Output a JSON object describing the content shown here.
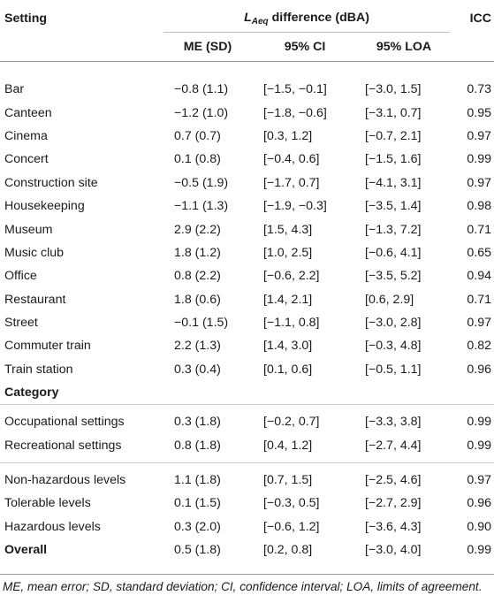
{
  "header": {
    "setting": "Setting",
    "laeq_symbol": "L",
    "laeq_sub": "Aeq",
    "laeq_rest": " difference (dBA)",
    "icc": "ICC",
    "me": "ME (SD)",
    "ci": "95% CI",
    "loa": "95% LOA"
  },
  "settings": [
    {
      "name": "Bar",
      "me": "−0.8 (1.1)",
      "ci": "[−1.5, −0.1]",
      "loa": "[−3.0, 1.5]",
      "icc": "0.73"
    },
    {
      "name": "Canteen",
      "me": "−1.2 (1.0)",
      "ci": "[−1.8, −0.6]",
      "loa": "[−3.1, 0.7]",
      "icc": "0.95"
    },
    {
      "name": "Cinema",
      "me": "0.7 (0.7)",
      "ci": "[0.3, 1.2]",
      "loa": "[−0.7, 2.1]",
      "icc": "0.97"
    },
    {
      "name": "Concert",
      "me": "0.1 (0.8)",
      "ci": "[−0.4, 0.6]",
      "loa": "[−1.5, 1.6]",
      "icc": "0.99"
    },
    {
      "name": "Construction site",
      "me": "−0.5 (1.9)",
      "ci": "[−1.7, 0.7]",
      "loa": "[−4.1, 3.1]",
      "icc": "0.97"
    },
    {
      "name": "Housekeeping",
      "me": "−1.1 (1.3)",
      "ci": "[−1.9, −0.3]",
      "loa": "[−3.5, 1.4]",
      "icc": "0.98"
    },
    {
      "name": "Museum",
      "me": "2.9 (2.2)",
      "ci": "[1.5, 4.3]",
      "loa": "[−1.3, 7.2]",
      "icc": "0.71"
    },
    {
      "name": "Music club",
      "me": "1.8 (1.2)",
      "ci": "[1.0, 2.5]",
      "loa": "[−0.6, 4.1]",
      "icc": "0.65"
    },
    {
      "name": "Office",
      "me": "0.8 (2.2)",
      "ci": "[−0.6, 2.2]",
      "loa": "[−3.5, 5.2]",
      "icc": "0.94"
    },
    {
      "name": "Restaurant",
      "me": "1.8 (0.6)",
      "ci": "[1.4, 2.1]",
      "loa": "[0.6, 2.9]",
      "icc": "0.71"
    },
    {
      "name": "Street",
      "me": "−0.1 (1.5)",
      "ci": "[−1.1, 0.8]",
      "loa": "[−3.0, 2.8]",
      "icc": "0.97"
    },
    {
      "name": "Commuter train",
      "me": "2.2 (1.3)",
      "ci": "[1.4, 3.0]",
      "loa": "[−0.3, 4.8]",
      "icc": "0.82"
    },
    {
      "name": "Train station",
      "me": "0.3 (0.4)",
      "ci": "[0.1, 0.6]",
      "loa": "[−0.5, 1.1]",
      "icc": "0.96"
    }
  ],
  "category_label": "Category",
  "settings_group": [
    {
      "name": "Occupational settings",
      "me": "0.3 (1.8)",
      "ci": "[−0.2, 0.7]",
      "loa": "[−3.3, 3.8]",
      "icc": "0.99"
    },
    {
      "name": "Recreational settings",
      "me": "0.8 (1.8)",
      "ci": "[0.4, 1.2]",
      "loa": "[−2.7, 4.4]",
      "icc": "0.99"
    }
  ],
  "levels_group": [
    {
      "name": "Non-hazardous levels",
      "me": "1.1 (1.8)",
      "ci": "[0.7, 1.5]",
      "loa": "[−2.5, 4.6]",
      "icc": "0.97"
    },
    {
      "name": "Tolerable levels",
      "me": "0.1 (1.5)",
      "ci": "[−0.3, 0.5]",
      "loa": "[−2.7, 2.9]",
      "icc": "0.96"
    },
    {
      "name": "Hazardous levels",
      "me": "0.3 (2.0)",
      "ci": "[−0.6, 1.2]",
      "loa": "[−3.6, 4.3]",
      "icc": "0.90"
    }
  ],
  "overall": {
    "name": "Overall",
    "me": "0.5 (1.8)",
    "ci": "[0.2, 0.8]",
    "loa": "[−3.0, 4.0]",
    "icc": "0.99"
  },
  "footnote": "ME, mean error; SD, standard deviation; CI, confidence interval; LOA, limits of agreement."
}
